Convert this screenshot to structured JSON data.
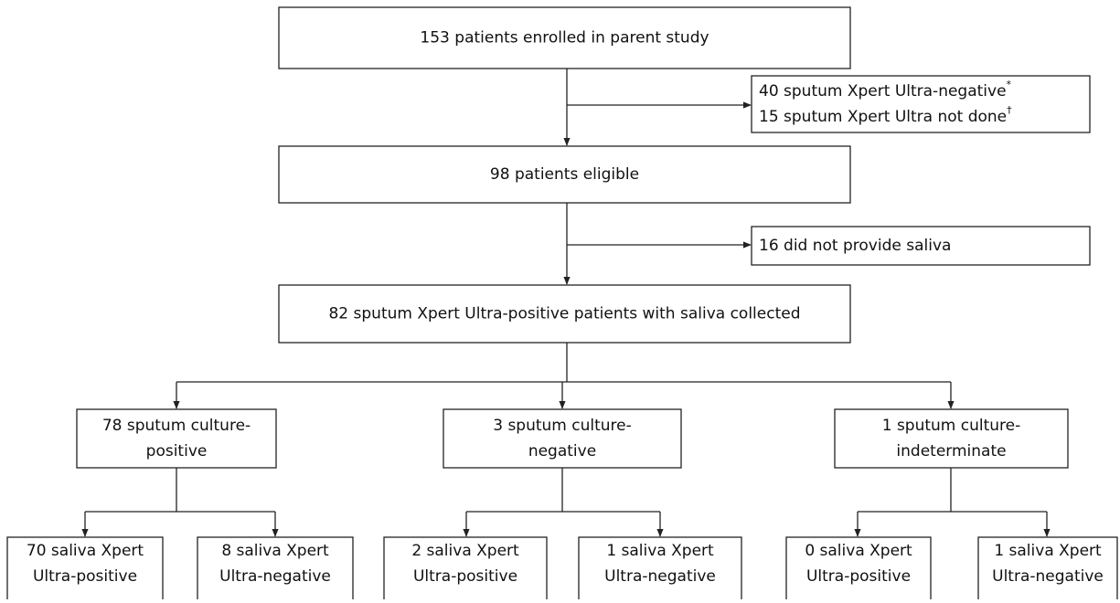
{
  "nodes": [
    {
      "lines": [
        "153 patients enrolled in parent study"
      ]
    },
    {
      "lines": [
        "40 sputum Xpert Ultra-negative",
        "15 sputum Xpert Ultra not done"
      ],
      "notes": [
        "*",
        "†"
      ]
    },
    {
      "lines": [
        "98 patients eligible"
      ]
    },
    {
      "lines": [
        "16 did not provide saliva"
      ]
    },
    {
      "lines": [
        "82 sputum Xpert Ultra-positive patients with saliva collected"
      ]
    },
    {
      "lines": [
        "78 sputum culture-",
        "positive"
      ]
    },
    {
      "lines": [
        "3 sputum culture-",
        "negative"
      ]
    },
    {
      "lines": [
        "1 sputum culture-",
        "indeterminate"
      ]
    },
    {
      "lines": [
        "70 saliva Xpert",
        "Ultra-positive"
      ]
    },
    {
      "lines": [
        "8 saliva Xpert",
        "Ultra-negative"
      ]
    },
    {
      "lines": [
        "2 saliva Xpert",
        "Ultra-positive"
      ]
    },
    {
      "lines": [
        "1 saliva Xpert",
        "Ultra-negative"
      ]
    },
    {
      "lines": [
        "0 saliva Xpert",
        "Ultra-positive"
      ]
    },
    {
      "lines": [
        "1 saliva Xpert",
        "Ultra-negative"
      ]
    }
  ]
}
